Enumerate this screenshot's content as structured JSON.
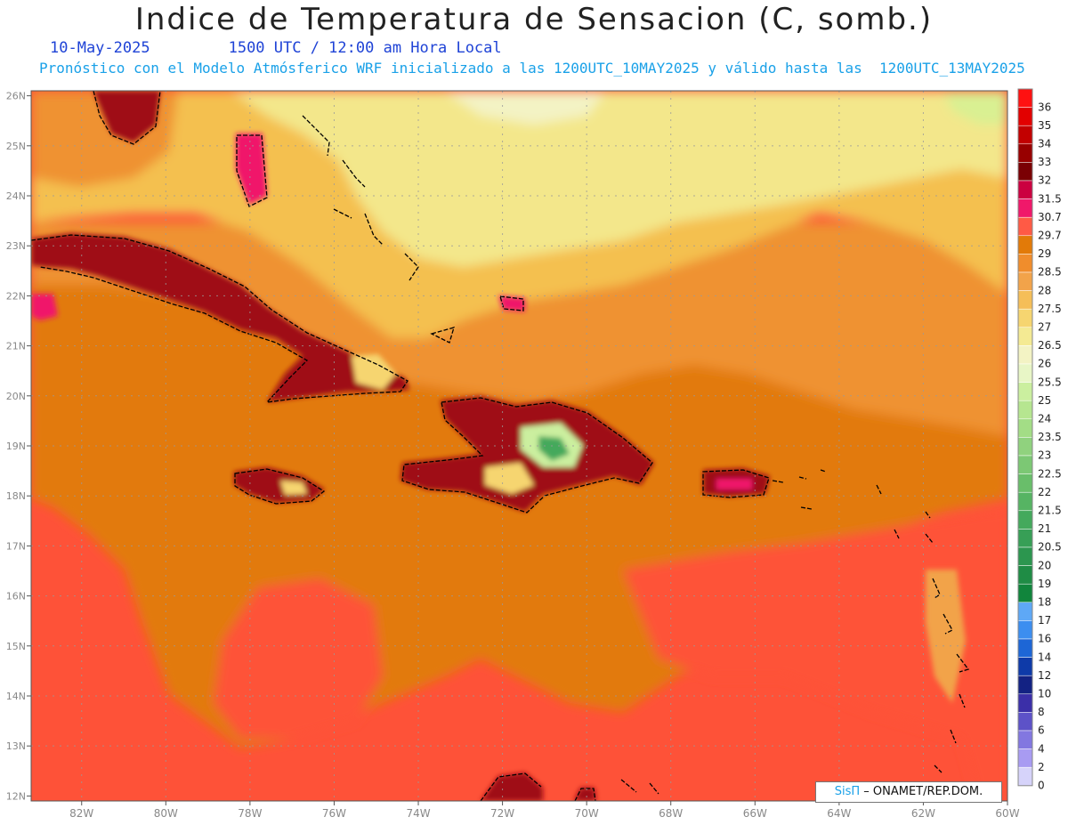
{
  "title": "Indice de Temperatura de Sensacion (C, somb.)",
  "date": "10-May-2025",
  "time_label": "1500 UTC / 12:00 am Hora Local",
  "forecast_note": "Pronóstico con el Modelo Atmósferico WRF inicializado a las 1200UTC_10MAY2025 y válido hasta las  1200UTC_13MAY2025",
  "credit": {
    "brand": "SisΠ",
    "text": "– ONAMET/REP.DOM."
  },
  "map": {
    "lon_range": [
      -83.2,
      -60
    ],
    "lat_range": [
      11.9,
      26.1
    ],
    "lon_ticks": [
      "82W",
      "80W",
      "78W",
      "76W",
      "74W",
      "72W",
      "70W",
      "68W",
      "66W",
      "64W",
      "62W",
      "60W"
    ],
    "lat_ticks": [
      "26N",
      "25N",
      "24N",
      "23N",
      "22N",
      "21N",
      "20N",
      "19N",
      "18N",
      "17N",
      "16N",
      "15N",
      "14N",
      "13N",
      "12N"
    ],
    "grid": true,
    "regions": {
      "south_caribbean": "#fe5238",
      "central_caribbean": "#e27a08",
      "mid_band": "#ef9232",
      "north_atlantic": "#f4c050",
      "far_north": "#f3e78b",
      "northeast_cool": "#d9f092",
      "islands_hot": "#9f0a12"
    }
  },
  "colorbar": {
    "labels": [
      "36",
      "35",
      "34",
      "33",
      "32",
      "31.5",
      "30.7",
      "29.7",
      "29",
      "28.5",
      "28",
      "27.5",
      "27",
      "26.5",
      "26",
      "25.5",
      "25",
      "24",
      "23.5",
      "23",
      "22.5",
      "22",
      "21.5",
      "21",
      "20.5",
      "20",
      "19",
      "18",
      "17",
      "16",
      "14",
      "12",
      "10",
      "8",
      "6",
      "4",
      "2",
      "0"
    ],
    "colors": [
      "#ff1111",
      "#e20000",
      "#c20000",
      "#980000",
      "#7a0004",
      "#cb0040",
      "#f0186a",
      "#ff5a45",
      "#e27a08",
      "#f08d2c",
      "#f2a34a",
      "#f5be58",
      "#f6d570",
      "#f4ea93",
      "#f3f3c4",
      "#e8f6c6",
      "#cbef9f",
      "#b6e690",
      "#a3dd86",
      "#90d27e",
      "#7cc874",
      "#69be6a",
      "#56b463",
      "#44a95c",
      "#379f56",
      "#2c964f",
      "#1f8c45",
      "#11853c",
      "#5ea8f6",
      "#3c8ef0",
      "#1d66d6",
      "#0e3aa8",
      "#132283",
      "#3b2fa8",
      "#5d52c8",
      "#8277e0",
      "#a89bf2",
      "#d6d3fa"
    ]
  }
}
